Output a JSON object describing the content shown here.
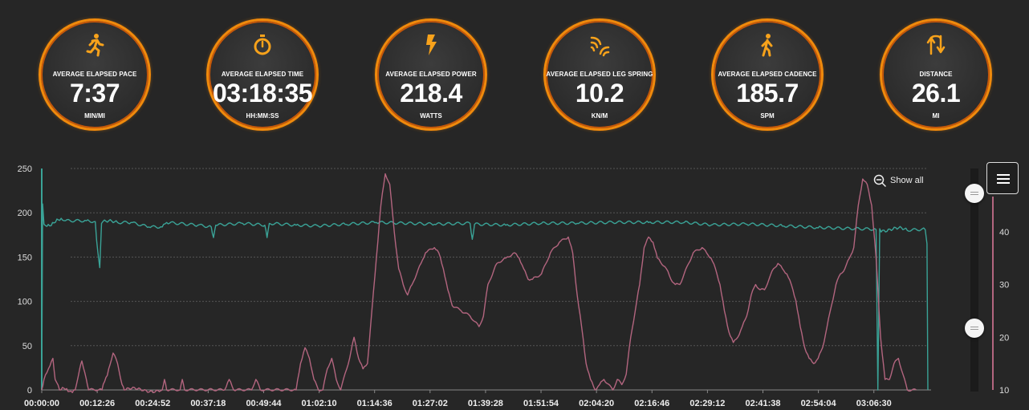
{
  "stats": [
    {
      "label": "AVERAGE ELAPSED PACE",
      "value": "7:37",
      "unit": "MIN/MI",
      "icon": "runner-icon"
    },
    {
      "label": "AVERAGE ELAPSED TIME",
      "value": "03:18:35",
      "unit": "HH:MM:SS",
      "icon": "stopwatch-icon"
    },
    {
      "label": "AVERAGE ELAPSED POWER",
      "value": "218.4",
      "unit": "WATTS",
      "icon": "lightning-icon"
    },
    {
      "label": "AVERAGE ELAPSED LEG SPRING",
      "value": "10.2",
      "unit": "KN/M",
      "icon": "signal-waves-icon"
    },
    {
      "label": "AVERAGE ELAPSED CADENCE",
      "value": "185.7",
      "unit": "SPM",
      "icon": "walker-icon"
    },
    {
      "label": "DISTANCE",
      "value": "26.1",
      "unit": "MI",
      "icon": "up-down-arrows-icon"
    }
  ],
  "controls": {
    "show_all": "Show all",
    "zoom_icon": "zoom-out-icon",
    "menu_icon": "hamburger-menu-icon"
  },
  "colors": {
    "accent": "#f08a0c",
    "cadence": "#3aa397",
    "leg_spring": "#b3657f",
    "grid": "#555555"
  },
  "chart_data": {
    "type": "line",
    "x_ticks": [
      "00:00:00",
      "00:12:26",
      "00:24:52",
      "00:37:18",
      "00:49:44",
      "01:02:10",
      "01:14:36",
      "01:27:02",
      "01:39:28",
      "01:51:54",
      "02:04:20",
      "02:16:46",
      "02:29:12",
      "02:41:38",
      "02:54:04",
      "03:06:30"
    ],
    "y_left": {
      "ticks": [
        "0",
        "50",
        "100",
        "150",
        "200",
        "250"
      ],
      "range": [
        0,
        250
      ]
    },
    "y_right": {
      "ticks": [
        "10",
        "20",
        "30",
        "40"
      ],
      "range": [
        10,
        52
      ]
    },
    "x_range_minutes": [
      0,
      198.6
    ],
    "grid": true,
    "series": [
      {
        "axis": "left",
        "color": "#3aa397",
        "points": [
          [
            0,
            0
          ],
          [
            0.2,
            210
          ],
          [
            0.5,
            187
          ],
          [
            5,
            191
          ],
          [
            10,
            191
          ],
          [
            12,
            190
          ],
          [
            12.6,
            155
          ],
          [
            13,
            138
          ],
          [
            13.4,
            188
          ],
          [
            17,
            189
          ],
          [
            20,
            189
          ],
          [
            24,
            184
          ],
          [
            27,
            184
          ],
          [
            28,
            189
          ],
          [
            35,
            186
          ],
          [
            38,
            184
          ],
          [
            38.5,
            172
          ],
          [
            39,
            186
          ],
          [
            45,
            188
          ],
          [
            50,
            186
          ],
          [
            50.5,
            172
          ],
          [
            51,
            188
          ],
          [
            57,
            186
          ],
          [
            62,
            185
          ],
          [
            68,
            187
          ],
          [
            75,
            189
          ],
          [
            82,
            188
          ],
          [
            88,
            187
          ],
          [
            96,
            188
          ],
          [
            96.5,
            170
          ],
          [
            97,
            187
          ],
          [
            104,
            186
          ],
          [
            112,
            188
          ],
          [
            120,
            188
          ],
          [
            128,
            189
          ],
          [
            136,
            189
          ],
          [
            144,
            189
          ],
          [
            150,
            186
          ],
          [
            158,
            187
          ],
          [
            166,
            185
          ],
          [
            174,
            183
          ],
          [
            180,
            182
          ],
          [
            187,
            181
          ],
          [
            187.4,
            0
          ],
          [
            187.8,
            182
          ],
          [
            194,
            180
          ],
          [
            198,
            181
          ],
          [
            198.4,
            165
          ],
          [
            198.6,
            0
          ]
        ]
      },
      {
        "axis": "right",
        "color": "#b3657f",
        "points": [
          [
            0,
            10
          ],
          [
            0.5,
            12
          ],
          [
            1.5,
            14
          ],
          [
            2.5,
            16
          ],
          [
            3,
            12
          ],
          [
            4,
            10
          ],
          [
            7.5,
            10
          ],
          [
            8.5,
            14
          ],
          [
            9,
            15.5
          ],
          [
            10,
            12
          ],
          [
            10.5,
            10
          ],
          [
            13.5,
            10
          ],
          [
            15,
            14
          ],
          [
            16,
            17
          ],
          [
            17,
            15
          ],
          [
            18,
            11
          ],
          [
            18.5,
            10
          ],
          [
            27,
            10
          ],
          [
            27.5,
            12
          ],
          [
            28,
            10
          ],
          [
            31,
            10
          ],
          [
            31.5,
            12
          ],
          [
            32,
            10
          ],
          [
            41,
            10
          ],
          [
            42,
            12
          ],
          [
            43,
            10
          ],
          [
            47,
            10
          ],
          [
            48,
            12
          ],
          [
            49,
            10
          ],
          [
            57,
            10
          ],
          [
            58,
            15
          ],
          [
            59,
            18
          ],
          [
            60,
            16
          ],
          [
            61,
            12
          ],
          [
            62,
            10
          ],
          [
            63,
            10
          ],
          [
            64,
            14
          ],
          [
            65,
            16
          ],
          [
            66,
            12
          ],
          [
            67,
            10
          ],
          [
            69,
            16
          ],
          [
            70,
            20
          ],
          [
            71,
            16
          ],
          [
            72,
            14
          ],
          [
            73,
            15
          ],
          [
            75,
            35
          ],
          [
            76,
            45
          ],
          [
            77,
            51
          ],
          [
            78,
            49
          ],
          [
            79,
            40
          ],
          [
            80,
            33
          ],
          [
            81,
            30
          ],
          [
            82,
            28
          ],
          [
            83,
            30
          ],
          [
            85,
            34
          ],
          [
            86,
            36
          ],
          [
            88,
            37
          ],
          [
            89,
            36
          ],
          [
            90,
            33
          ],
          [
            91,
            29
          ],
          [
            92,
            26
          ],
          [
            94,
            25
          ],
          [
            96,
            24
          ],
          [
            97,
            23
          ],
          [
            98,
            22
          ],
          [
            99,
            24
          ],
          [
            100,
            30
          ],
          [
            102,
            34
          ],
          [
            104,
            35
          ],
          [
            106,
            36
          ],
          [
            107,
            35
          ],
          [
            108,
            33
          ],
          [
            109,
            31
          ],
          [
            110,
            31
          ],
          [
            112,
            32
          ],
          [
            114,
            36
          ],
          [
            116,
            38
          ],
          [
            118,
            39
          ],
          [
            119,
            36
          ],
          [
            120,
            28
          ],
          [
            121,
            22
          ],
          [
            122,
            15
          ],
          [
            123,
            12
          ],
          [
            124,
            10
          ],
          [
            125,
            11
          ],
          [
            126,
            12
          ],
          [
            128,
            10
          ],
          [
            129,
            12
          ],
          [
            130,
            11
          ],
          [
            131,
            13
          ],
          [
            132,
            20
          ],
          [
            134,
            30
          ],
          [
            135,
            37
          ],
          [
            136,
            39
          ],
          [
            137,
            38
          ],
          [
            138,
            35
          ],
          [
            140,
            33
          ],
          [
            141,
            31
          ],
          [
            142,
            30
          ],
          [
            143,
            30
          ],
          [
            145,
            34
          ],
          [
            146,
            36
          ],
          [
            148,
            37
          ],
          [
            149,
            36
          ],
          [
            150,
            35
          ],
          [
            151,
            33
          ],
          [
            152,
            30
          ],
          [
            153,
            25
          ],
          [
            154,
            21
          ],
          [
            155,
            19
          ],
          [
            156,
            20
          ],
          [
            157,
            22
          ],
          [
            158,
            24
          ],
          [
            159,
            28
          ],
          [
            160,
            30
          ],
          [
            161,
            29
          ],
          [
            162,
            29
          ],
          [
            163,
            31
          ],
          [
            164,
            33
          ],
          [
            165,
            34
          ],
          [
            166,
            33
          ],
          [
            167,
            32
          ],
          [
            168,
            30
          ],
          [
            169,
            27
          ],
          [
            170,
            22
          ],
          [
            171,
            18
          ],
          [
            172,
            16
          ],
          [
            173,
            15
          ],
          [
            174,
            16
          ],
          [
            175,
            18
          ],
          [
            176,
            22
          ],
          [
            177,
            26
          ],
          [
            178,
            30
          ],
          [
            179,
            32
          ],
          [
            180,
            33
          ],
          [
            181,
            35
          ],
          [
            182,
            37
          ],
          [
            183,
            45
          ],
          [
            184,
            50
          ],
          [
            185,
            49
          ],
          [
            186,
            45
          ],
          [
            187,
            35
          ],
          [
            188,
            20
          ],
          [
            189,
            12
          ],
          [
            190,
            12
          ],
          [
            191,
            15
          ],
          [
            192,
            16
          ],
          [
            193,
            13
          ],
          [
            194,
            10
          ],
          [
            196,
            10
          ]
        ]
      }
    ]
  }
}
